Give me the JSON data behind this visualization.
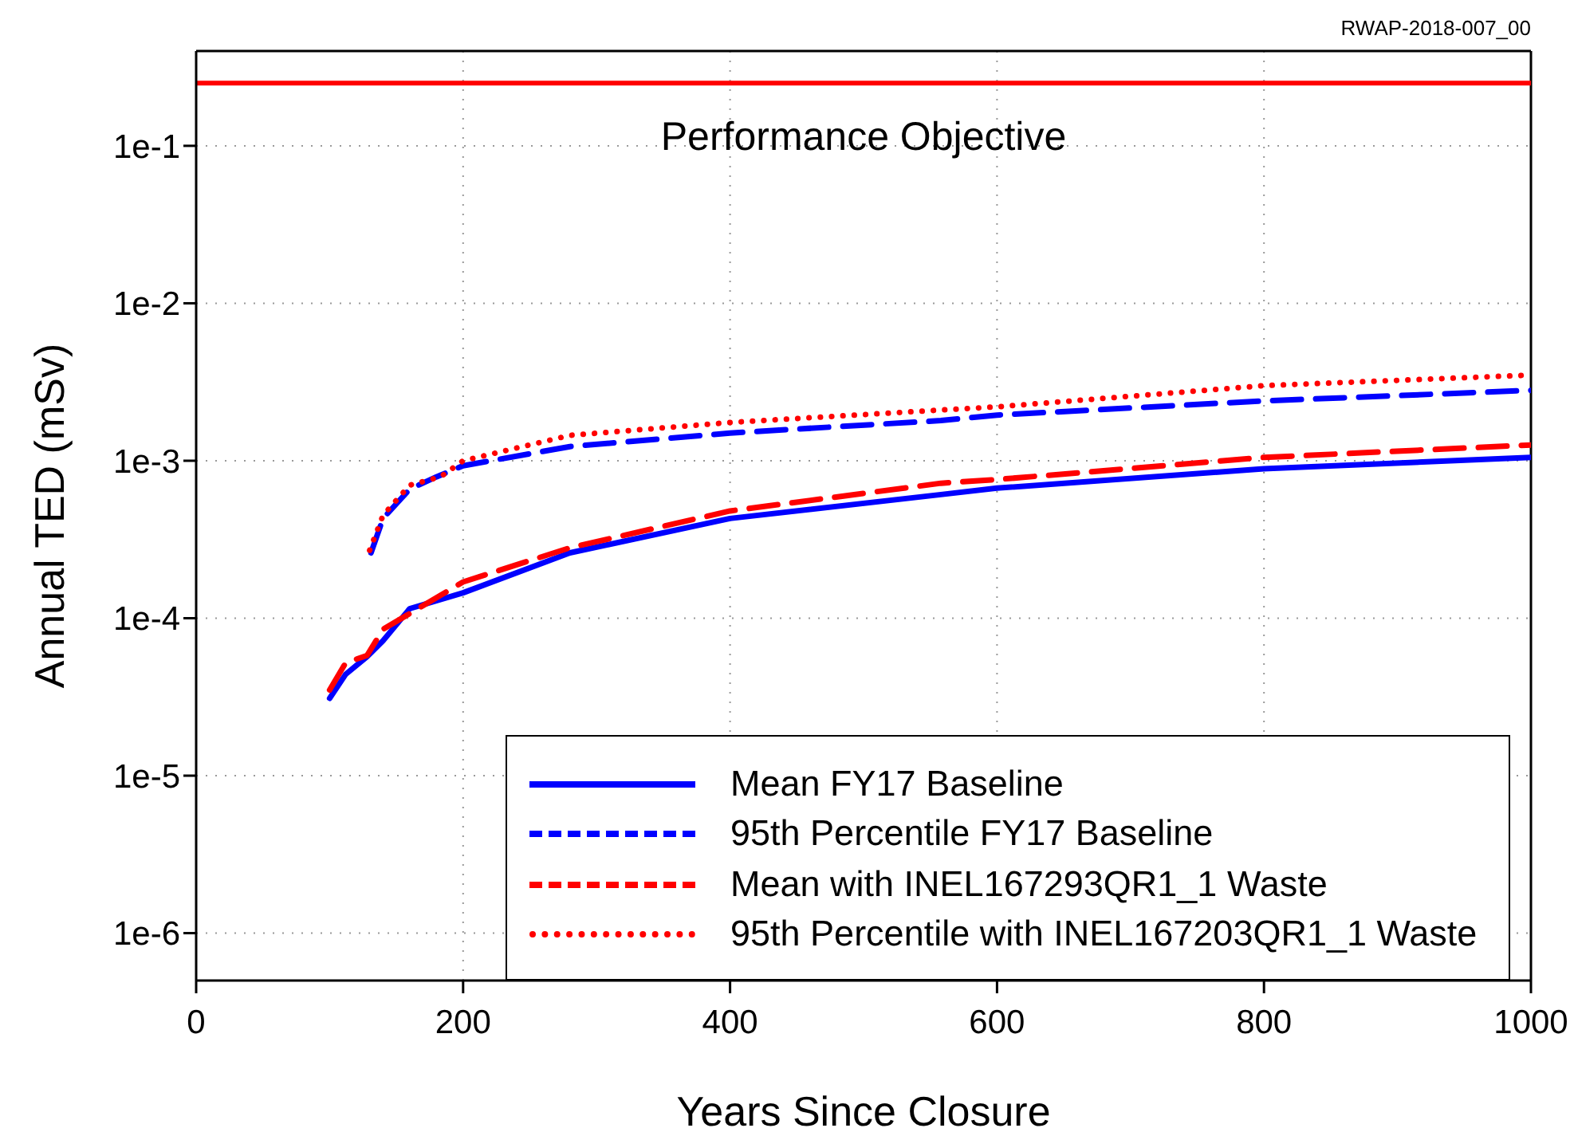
{
  "chart_data": {
    "type": "line",
    "xlabel": "Years Since Closure",
    "ylabel": "Annual TED (mSv)",
    "annotations": [
      "RWAP-2018-007_00"
    ],
    "log": "y",
    "grid": true,
    "legend": "bottom right",
    "xlim": [
      0,
      1000
    ],
    "xticks": [
      0,
      200,
      400,
      600,
      800,
      1000
    ],
    "ylim": [
      5e-07,
      0.4
    ],
    "yticks": [
      {
        "value": 1e-06,
        "label": "1e-6"
      },
      {
        "value": 1e-05,
        "label": "1e-5"
      },
      {
        "value": 0.0001,
        "label": "1e-4"
      },
      {
        "value": 0.001,
        "label": "1e-3"
      },
      {
        "value": 0.01,
        "label": "1e-2"
      },
      {
        "value": 0.1,
        "label": "1e-1"
      }
    ],
    "ref_lines": [
      {
        "axis": "y",
        "value": 0.25,
        "label": "Performance Objective",
        "color": "#ff0000"
      }
    ],
    "series": [
      {
        "name": "Mean FY17 Baseline",
        "color": "#0000ff",
        "line_style": "solid",
        "x": [
          100,
          112,
          128,
          140,
          160,
          200,
          280,
          400,
          558,
          600,
          800,
          1000
        ],
        "values": [
          3.1e-05,
          4.4e-05,
          5.7e-05,
          7.2e-05,
          0.000115,
          0.000145,
          0.00026,
          0.00043,
          0.00061,
          0.00067,
          0.00089,
          0.00105
        ]
      },
      {
        "name": "95th Percentile FY17 Baseline",
        "color": "#0000ff",
        "line_style": "dashed",
        "x": [
          131,
          140,
          160,
          180,
          200,
          280,
          400,
          558,
          600,
          800,
          1000
        ],
        "values": [
          0.00026,
          0.00043,
          0.00066,
          0.00079,
          0.00093,
          0.00123,
          0.0015,
          0.0018,
          0.00195,
          0.0024,
          0.0028
        ]
      },
      {
        "name": "Mean with INEL167293QR1_1 Waste",
        "color": "#ff0000",
        "line_style": "dashed",
        "x": [
          100,
          112,
          128,
          140,
          200,
          280,
          400,
          558,
          600,
          800,
          1000
        ],
        "values": [
          3.5e-05,
          5.2e-05,
          5.8e-05,
          8.5e-05,
          0.00017,
          0.00028,
          0.00048,
          0.00072,
          0.00076,
          0.00105,
          0.00126
        ]
      },
      {
        "name": "95th Percentile with INEL167203QR1_1 Waste",
        "color": "#ff0000",
        "line_style": "dotted",
        "x": [
          130,
          140,
          160,
          183,
          200,
          280,
          400,
          558,
          600,
          800,
          1000
        ],
        "values": [
          0.00027,
          0.00045,
          0.0007,
          0.00079,
          0.001,
          0.00145,
          0.00175,
          0.0021,
          0.0022,
          0.003,
          0.0035
        ]
      }
    ]
  }
}
